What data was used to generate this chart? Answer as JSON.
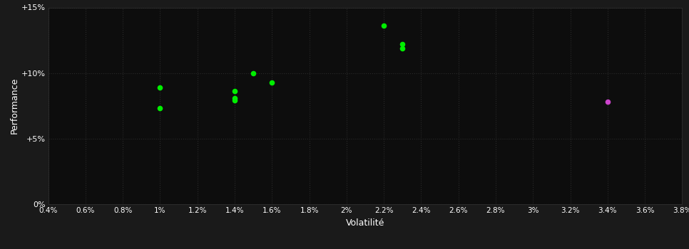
{
  "xlabel": "Volatilité",
  "ylabel": "Performance",
  "background_color": "#1a1a1a",
  "plot_bg_color": "#0d0d0d",
  "grid_color": "#2a2a2a",
  "text_color": "#ffffff",
  "xlim": [
    0.004,
    0.038
  ],
  "ylim": [
    0.0,
    0.15
  ],
  "xticks": [
    0.004,
    0.006,
    0.008,
    0.01,
    0.012,
    0.014,
    0.016,
    0.018,
    0.02,
    0.022,
    0.024,
    0.026,
    0.028,
    0.03,
    0.032,
    0.034,
    0.036,
    0.038
  ],
  "yticks": [
    0.0,
    0.05,
    0.1,
    0.15
  ],
  "ytick_labels": [
    "0%",
    "+5%",
    "+10%",
    "+15%"
  ],
  "xtick_labels": [
    "0.4%",
    "0.6%",
    "0.8%",
    "1%",
    "1.2%",
    "1.4%",
    "1.6%",
    "1.8%",
    "2%",
    "2.2%",
    "2.4%",
    "2.6%",
    "2.8%",
    "3%",
    "3.2%",
    "3.4%",
    "3.6%",
    "3.8%"
  ],
  "green_points": [
    [
      0.01,
      0.089
    ],
    [
      0.01,
      0.073
    ],
    [
      0.014,
      0.086
    ],
    [
      0.014,
      0.081
    ],
    [
      0.014,
      0.079
    ],
    [
      0.015,
      0.1
    ],
    [
      0.016,
      0.093
    ],
    [
      0.022,
      0.136
    ],
    [
      0.023,
      0.122
    ],
    [
      0.023,
      0.119
    ]
  ],
  "magenta_points": [
    [
      0.034,
      0.078
    ]
  ],
  "green_color": "#00ee00",
  "magenta_color": "#cc44cc",
  "marker_size": 30
}
